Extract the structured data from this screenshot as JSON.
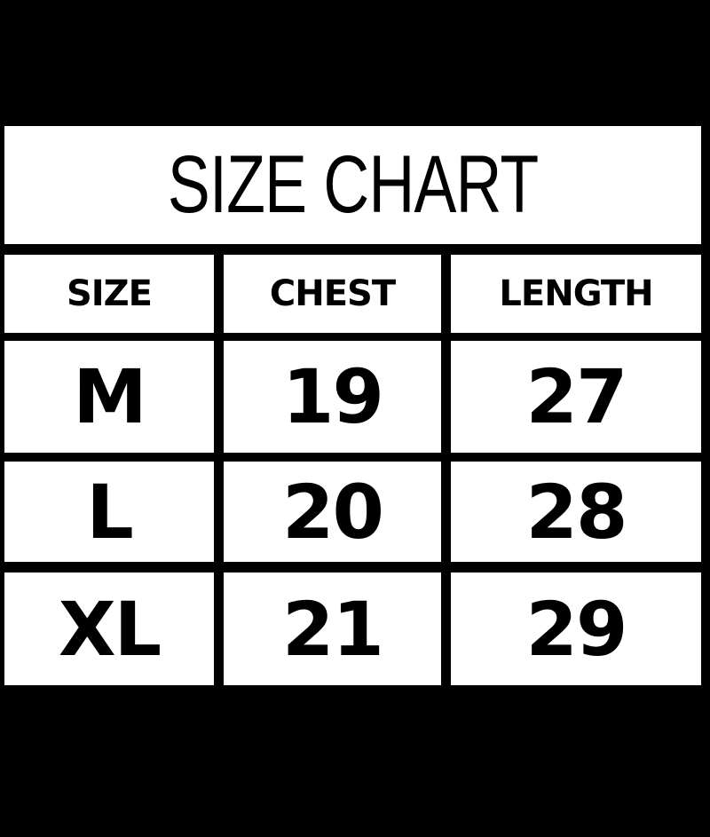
{
  "title": "SIZE CHART",
  "headers": [
    "SIZE",
    "CHEST",
    "LENGTH"
  ],
  "rows": [
    [
      "M",
      "19",
      "27"
    ],
    [
      "L",
      "20",
      "28"
    ],
    [
      "XL",
      "21",
      "29"
    ]
  ],
  "colors": {
    "background": "#000000",
    "cell": "#ffffff",
    "text": "#000000"
  }
}
